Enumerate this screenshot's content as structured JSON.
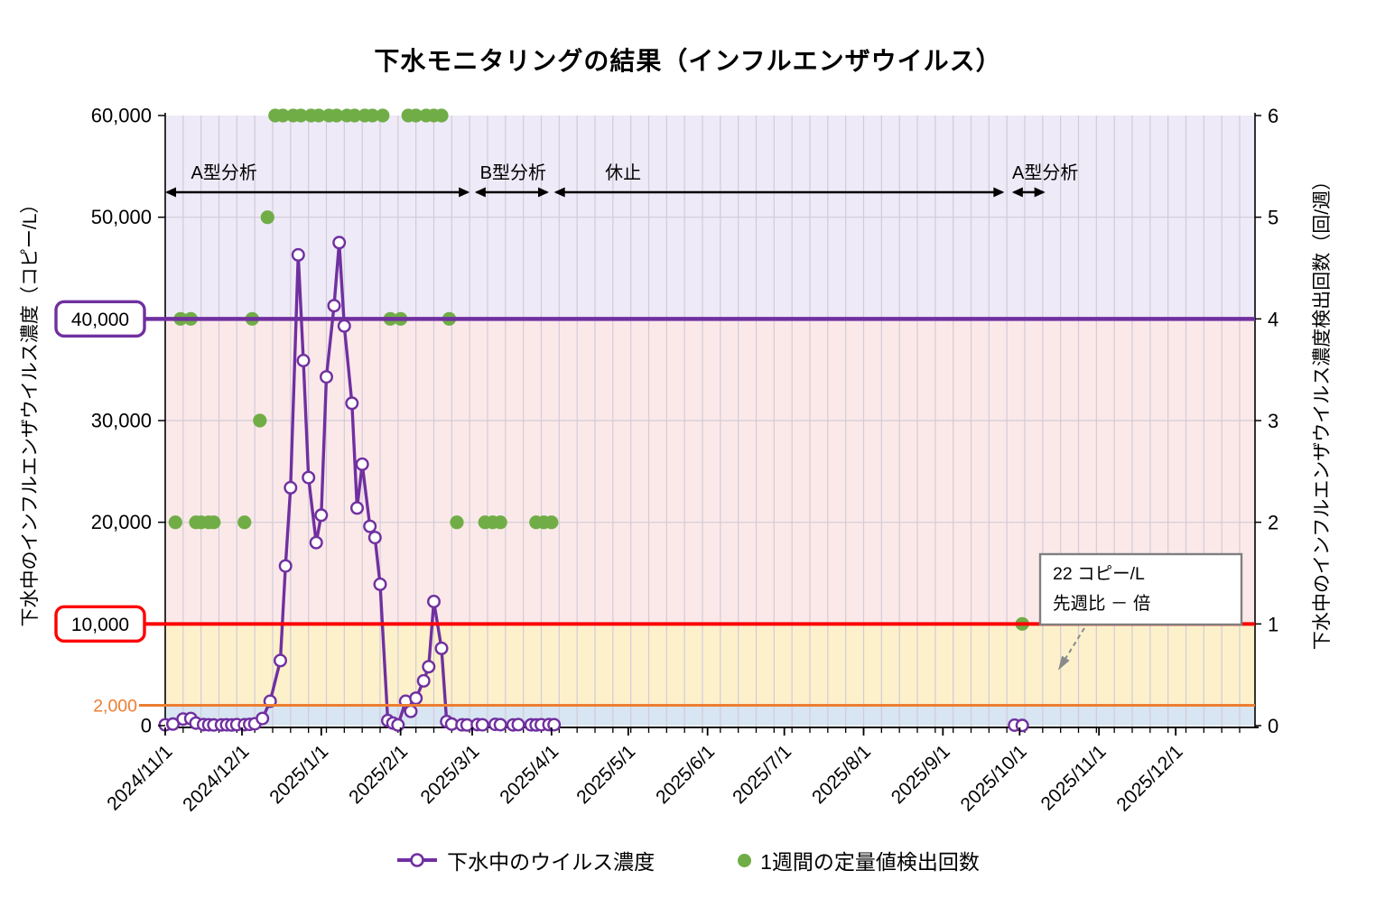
{
  "chart_data": {
    "type": "line",
    "title": "下水モニタリングの結果（インフルエンザウイルス）",
    "x_axis": {
      "start": "2024-11-01",
      "end": "2026-01-01",
      "minor_grid_days": 7,
      "tick_labels": [
        "2024/11/1",
        "2024/12/1",
        "2025/1/1",
        "2025/2/1",
        "2025/3/1",
        "2025/4/1",
        "2025/5/1",
        "2025/6/1",
        "2025/7/1",
        "2025/8/1",
        "2025/9/1",
        "2025/10/1",
        "2025/11/1",
        "2025/12/1"
      ]
    },
    "y_left": {
      "label": "下水中のインフルエンザウイルス濃度（コピー/L）",
      "min": 0,
      "max": 60000,
      "ticks": [
        {
          "value": 60000,
          "label": "60,000",
          "style": "plain"
        },
        {
          "value": 50000,
          "label": "50,000",
          "style": "plain"
        },
        {
          "value": 40000,
          "label": "40,000",
          "style": "boxed",
          "color": "#7030A0"
        },
        {
          "value": 30000,
          "label": "30,000",
          "style": "plain"
        },
        {
          "value": 20000,
          "label": "20,000",
          "style": "plain"
        },
        {
          "value": 10000,
          "label": "10,000",
          "style": "boxed",
          "color": "#FF0000"
        },
        {
          "value": 2000,
          "label": "2,000",
          "style": "colored",
          "color": "#ED7D31"
        },
        {
          "value": 0,
          "label": "0",
          "style": "plain"
        }
      ],
      "grid_values": [
        20000,
        30000,
        50000
      ]
    },
    "y_right": {
      "label": "下水中のインフルエンザウイルス濃度検出回数（回/週）",
      "min": 0,
      "max": 6,
      "ticks": [
        {
          "value": 6,
          "label": "6"
        },
        {
          "value": 5,
          "label": "5"
        },
        {
          "value": 4,
          "label": "4"
        },
        {
          "value": 3,
          "label": "3"
        },
        {
          "value": 2,
          "label": "2"
        },
        {
          "value": 1,
          "label": "1"
        },
        {
          "value": 0,
          "label": "0"
        }
      ]
    },
    "bands": [
      {
        "from": 0,
        "to": 2000,
        "color": "#D8E5F2"
      },
      {
        "from": 2000,
        "to": 10000,
        "color": "#FCF1CA"
      },
      {
        "from": 10000,
        "to": 40000,
        "color": "#FBE9E9"
      },
      {
        "from": 40000,
        "to": 60000,
        "color": "#EEEAF7"
      }
    ],
    "reference_lines": [
      {
        "value": 2000,
        "color": "#ED7D31",
        "width": 3,
        "overhang": 29
      },
      {
        "value": 10000,
        "color": "#FF0000",
        "width": 4,
        "overhang": 22
      },
      {
        "value": 40000,
        "color": "#7030A0",
        "width": 4.5,
        "overhang": 22
      }
    ],
    "periods": [
      {
        "label": "A型分析",
        "start": "2024-11-01",
        "end": "2025-02-28",
        "label_date": "2024-11-24"
      },
      {
        "label": "B型分析",
        "start": "2025-03-02",
        "end": "2025-03-31",
        "label_date": "2025-03-17"
      },
      {
        "label": "休止",
        "start": "2025-04-02",
        "end": "2025-09-25",
        "label_date": "2025-04-29"
      },
      {
        "label": "A型分析",
        "start": "2025-09-28",
        "end": "2025-10-11",
        "label_date": "2025-10-11"
      }
    ],
    "series": [
      {
        "name": "下水中のウイルス濃度",
        "type": "line",
        "axis": "left",
        "color": "#7030A0",
        "marker": "open-circle",
        "segments": [
          [
            [
              "2024-11-01",
              80
            ],
            [
              "2024-11-04",
              150
            ],
            [
              "2024-11-08",
              650
            ],
            [
              "2024-11-11",
              700
            ],
            [
              "2024-11-13",
              250
            ],
            [
              "2024-11-16",
              100
            ],
            [
              "2024-11-18",
              80
            ],
            [
              "2024-11-20",
              60
            ],
            [
              "2024-11-23",
              70
            ],
            [
              "2024-11-25",
              80
            ],
            [
              "2024-11-27",
              60
            ],
            [
              "2024-11-29",
              100
            ],
            [
              "2024-12-02",
              90
            ],
            [
              "2024-12-04",
              120
            ],
            [
              "2024-12-06",
              180
            ],
            [
              "2024-12-09",
              700
            ],
            [
              "2024-12-12",
              2400
            ],
            [
              "2024-12-16",
              6400
            ],
            [
              "2024-12-18",
              15700
            ],
            [
              "2024-12-20",
              23400
            ],
            [
              "2024-12-23",
              46300
            ],
            [
              "2024-12-25",
              35900
            ],
            [
              "2024-12-27",
              24400
            ],
            [
              "2024-12-30",
              18000
            ],
            [
              "2025-01-01",
              20700
            ],
            [
              "2025-01-03",
              34300
            ],
            [
              "2025-01-06",
              41300
            ],
            [
              "2025-01-08",
              47500
            ],
            [
              "2025-01-10",
              39300
            ],
            [
              "2025-01-13",
              31700
            ],
            [
              "2025-01-15",
              21400
            ],
            [
              "2025-01-17",
              25700
            ],
            [
              "2025-01-20",
              19600
            ],
            [
              "2025-01-22",
              18500
            ],
            [
              "2025-01-24",
              13900
            ],
            [
              "2025-01-27",
              500
            ],
            [
              "2025-01-29",
              250
            ],
            [
              "2025-01-31",
              60
            ],
            [
              "2025-02-03",
              2400
            ],
            [
              "2025-02-05",
              1400
            ],
            [
              "2025-02-07",
              2700
            ],
            [
              "2025-02-10",
              4400
            ],
            [
              "2025-02-12",
              5800
            ],
            [
              "2025-02-14",
              12200
            ],
            [
              "2025-02-17",
              7600
            ],
            [
              "2025-02-19",
              400
            ],
            [
              "2025-02-21",
              150
            ],
            [
              "2025-02-25",
              80
            ],
            [
              "2025-02-27",
              60
            ],
            [
              "2025-03-03",
              100
            ],
            [
              "2025-03-05",
              80
            ],
            [
              "2025-03-10",
              120
            ],
            [
              "2025-03-12",
              90
            ],
            [
              "2025-03-17",
              70
            ],
            [
              "2025-03-19",
              100
            ],
            [
              "2025-03-24",
              80
            ],
            [
              "2025-03-26",
              60
            ],
            [
              "2025-03-28",
              90
            ],
            [
              "2025-03-31",
              100
            ],
            [
              "2025-04-02",
              90
            ]
          ],
          [
            [
              "2025-09-29",
              40
            ],
            [
              "2025-10-02",
              22
            ]
          ]
        ]
      },
      {
        "name": "1週間の定量値検出回数",
        "type": "scatter",
        "axis": "right",
        "color": "#70AD47",
        "marker": "dot",
        "points": [
          [
            "2024-11-05",
            2
          ],
          [
            "2024-11-07",
            4
          ],
          [
            "2024-11-11",
            4
          ],
          [
            "2024-11-13",
            2
          ],
          [
            "2024-11-15",
            2
          ],
          [
            "2024-11-18",
            2
          ],
          [
            "2024-11-20",
            2
          ],
          [
            "2024-12-02",
            2
          ],
          [
            "2024-12-05",
            4
          ],
          [
            "2024-12-08",
            3
          ],
          [
            "2024-12-11",
            5
          ],
          [
            "2024-12-14",
            6
          ],
          [
            "2024-12-17",
            6
          ],
          [
            "2024-12-21",
            6
          ],
          [
            "2024-12-24",
            6
          ],
          [
            "2024-12-28",
            6
          ],
          [
            "2024-12-31",
            6
          ],
          [
            "2025-01-04",
            6
          ],
          [
            "2025-01-07",
            6
          ],
          [
            "2025-01-11",
            6
          ],
          [
            "2025-01-14",
            6
          ],
          [
            "2025-01-18",
            6
          ],
          [
            "2025-01-21",
            6
          ],
          [
            "2025-01-25",
            6
          ],
          [
            "2025-01-28",
            4
          ],
          [
            "2025-02-01",
            4
          ],
          [
            "2025-02-04",
            6
          ],
          [
            "2025-02-07",
            6
          ],
          [
            "2025-02-11",
            6
          ],
          [
            "2025-02-14",
            6
          ],
          [
            "2025-02-17",
            6
          ],
          [
            "2025-02-20",
            4
          ],
          [
            "2025-02-23",
            2
          ],
          [
            "2025-03-06",
            2
          ],
          [
            "2025-03-09",
            2
          ],
          [
            "2025-03-12",
            2
          ],
          [
            "2025-03-26",
            2
          ],
          [
            "2025-03-29",
            2
          ],
          [
            "2025-04-01",
            2
          ],
          [
            "2025-10-02",
            1
          ]
        ]
      }
    ],
    "annotation": {
      "text_lines": [
        "22 コピー/L",
        "先週比 － 倍"
      ],
      "points_to_date": "2025-10-02"
    },
    "colors": {
      "grid": "#D2CBD8",
      "axis": "#000000",
      "annotation_border": "#7F7F7F",
      "annotation_arrow": "#8A8A8A"
    }
  }
}
